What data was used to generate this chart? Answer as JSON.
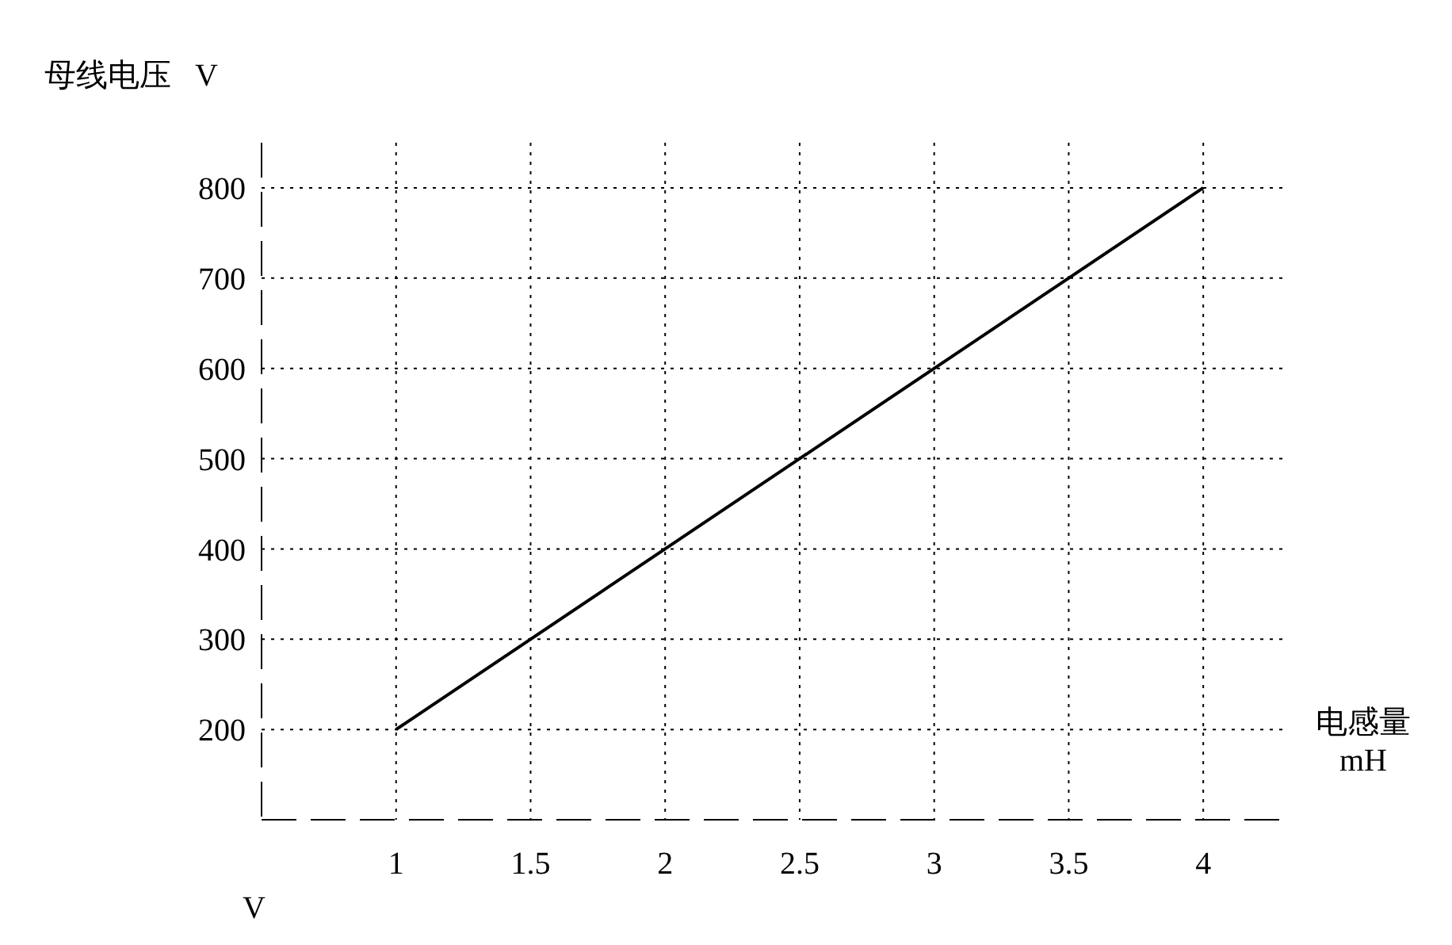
{
  "chart_data": {
    "type": "line",
    "xlabel": "电感量\nmH",
    "ylabel": "母线电压   V",
    "annotations": [
      "V"
    ],
    "x": [
      1,
      4
    ],
    "series": [
      {
        "color": "#000000",
        "values": [
          200,
          800
        ]
      }
    ],
    "xlim": [
      0.5,
      4.3
    ],
    "xticks": [
      1,
      1.5,
      2,
      2.5,
      3,
      3.5,
      4
    ],
    "ylim": [
      100,
      850
    ],
    "yticks": [
      200,
      300,
      400,
      500,
      600,
      700,
      800
    ],
    "grid": true,
    "marker": "none",
    "line_style": "solid"
  }
}
